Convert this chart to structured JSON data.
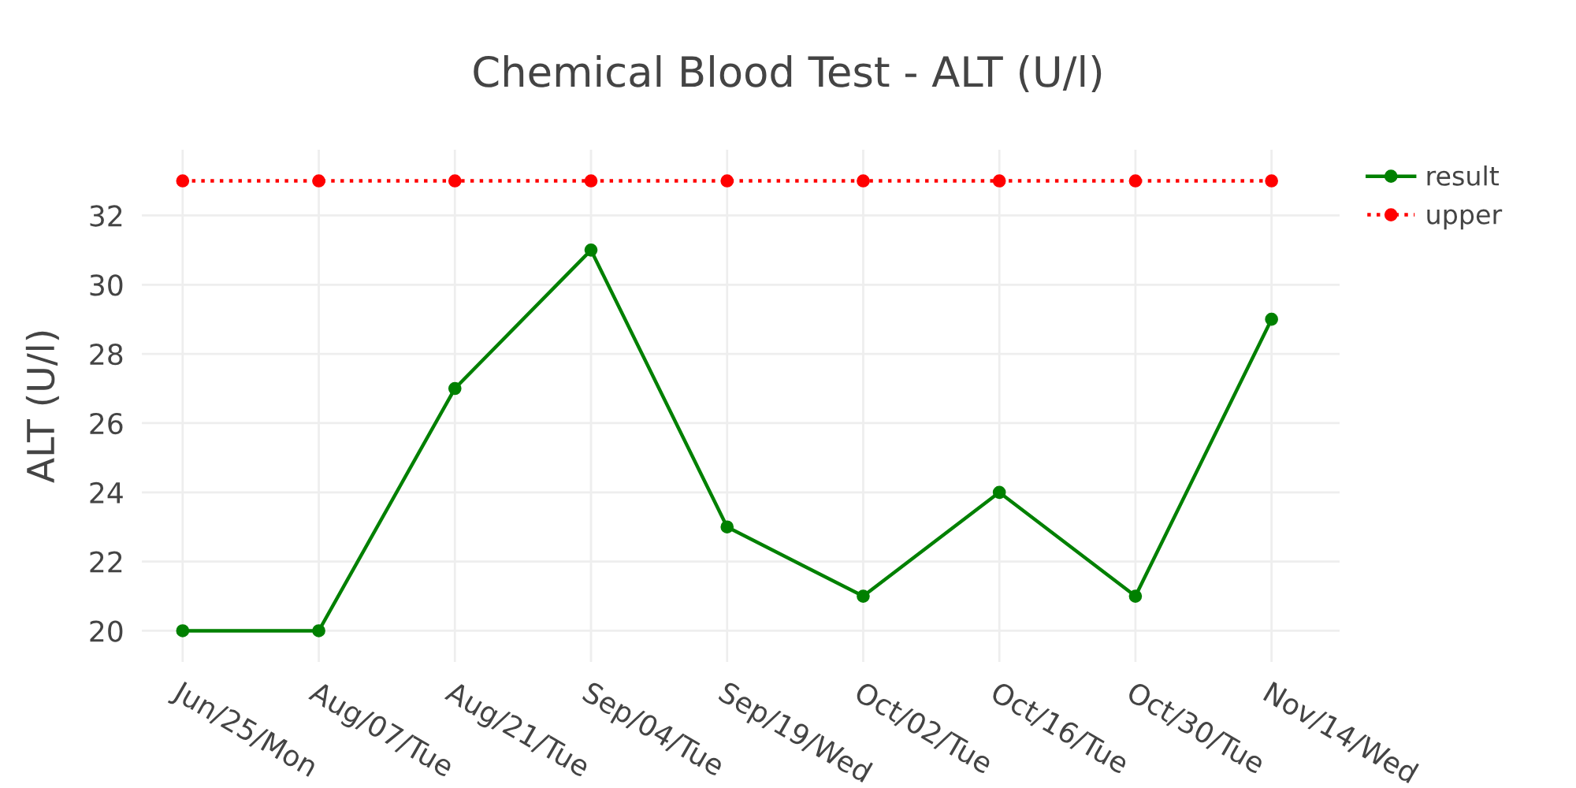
{
  "chart_data": {
    "type": "line",
    "title": "Chemical Blood Test - ALT (U/l)",
    "ylabel": "ALT (U/l)",
    "categories": [
      "Jun/25/Mon",
      "Aug/07/Tue",
      "Aug/21/Tue",
      "Sep/04/Tue",
      "Sep/19/Wed",
      "Oct/02/Tue",
      "Oct/16/Tue",
      "Oct/30/Tue",
      "Nov/14/Wed"
    ],
    "series": [
      {
        "name": "result",
        "color": "#008000",
        "line_style": "solid",
        "values": [
          20,
          20,
          27,
          31,
          23,
          21,
          24,
          21,
          29
        ]
      },
      {
        "name": "upper",
        "color": "#ff0000",
        "line_style": "dotted",
        "values": [
          33,
          33,
          33,
          33,
          33,
          33,
          33,
          33,
          33
        ]
      }
    ],
    "ylim": [
      19.1,
      33.9
    ],
    "yticks": [
      20,
      22,
      24,
      26,
      28,
      30,
      32
    ],
    "grid": true,
    "legend": "top right",
    "marker": "circle"
  }
}
